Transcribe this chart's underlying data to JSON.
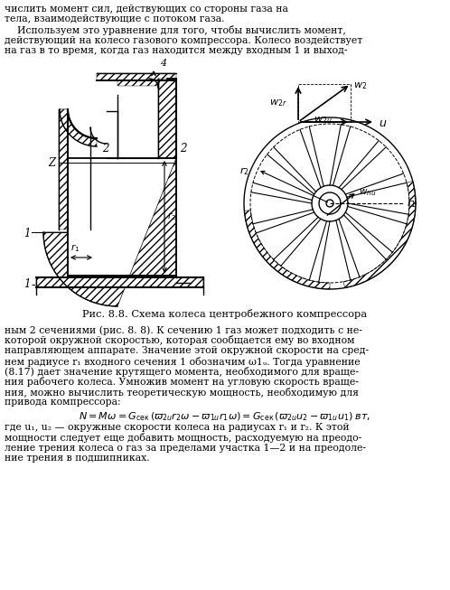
{
  "bg_color": "#ffffff",
  "text_color": "#000000",
  "top_lines": [
    "числить момент сил, действующих со стороны газа на",
    "тела, взаимодействующие с потоком газа.",
    "    Используем это уравнение для того, чтобы вычислить момент,",
    "действующий на колесо газового компрессора. Колесо воздействует",
    "на газ в то время, когда газ находится между входным 1 и выход-"
  ],
  "caption": "Рис. 8.8. Схема колеса центробежного компрессора",
  "bottom_lines": [
    "ным 2 сечениями (рис. 8. 8). К сечению 1 газ может подходить с не-",
    "которой окружной скоростью, которая сообщается ему во входном",
    "направляющем аппарате. Значение этой окружной скорости на сред-",
    "нем радиусе r₁ входного сечения 1 обозначим ω1ᵤ. Тогда уравнение",
    "(8.17) дает значение крутящего момента, необходимого для враще-",
    "ния рабочего колеса. Умножив момент на угловую скорость враще-",
    "ния, можно вычислить теоретическую мощность, необходимую для",
    "привода компрессора:"
  ],
  "where_lines": [
    "где u₁, u₂ — окружные скорости колеса на радиусах r₁ и r₂. К этой",
    "мощности следует еще добавить мощность, расходуемую на преодо-",
    "ление трения колеса о газ за пределами участка 1—2 и на преодоле-",
    "ние трения в подшипниках."
  ]
}
